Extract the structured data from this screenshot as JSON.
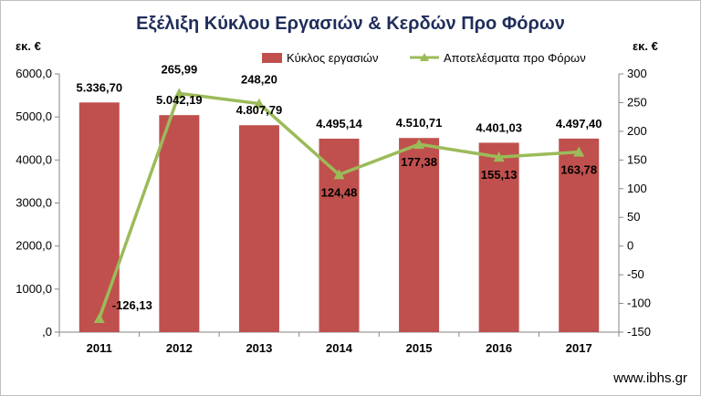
{
  "chart_data": {
    "type": "bar",
    "title": "Εξέλιξη Κύκλου Εργασιών & Κερδών Προ Φόρων",
    "categories": [
      "2011",
      "2012",
      "2013",
      "2014",
      "2015",
      "2016",
      "2017"
    ],
    "y_unit_left": "εκ. €",
    "y_unit_right": "εκ. €",
    "y_left": {
      "min": 0,
      "max": 6000,
      "step": 1000,
      "tick_labels": [
        ",0",
        "1000,0",
        "2000,0",
        "3000,0",
        "4000,0",
        "5000,0",
        "6000,0"
      ]
    },
    "y_right": {
      "min": -150,
      "max": 300,
      "step": 50,
      "tick_labels": [
        "-150",
        "-100",
        "-50",
        "0",
        "50",
        "100",
        "150",
        "200",
        "250",
        "300"
      ]
    },
    "series": [
      {
        "name": "Κύκλος εργασιών",
        "type": "bar",
        "axis": "left",
        "color": "#c0504d",
        "values": [
          5336.7,
          5042.19,
          4807.79,
          4495.14,
          4510.71,
          4401.03,
          4497.4
        ],
        "labels": [
          "5.336,70",
          "5.042,19",
          "4.807,79",
          "4.495,14",
          "4.510,71",
          "4.401,03",
          "4.497,40"
        ]
      },
      {
        "name": "Αποτελέσματα προ Φόρων",
        "type": "line",
        "axis": "right",
        "color": "#9bbb59",
        "marker": "triangle",
        "values": [
          -126.13,
          265.99,
          248.2,
          124.48,
          177.38,
          155.13,
          163.78
        ],
        "labels": [
          "-126,13",
          "265,99",
          "248,20",
          "124,48",
          "177,38",
          "155,13",
          "163,78"
        ]
      }
    ],
    "legend": "top-right",
    "grid": false,
    "source": "www.ibhs.gr"
  }
}
